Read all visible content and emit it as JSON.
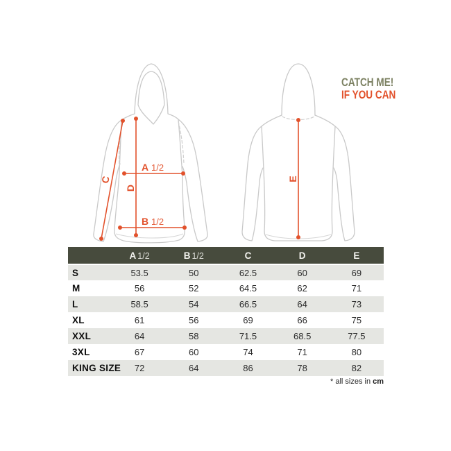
{
  "colors": {
    "accent": "#e2512b",
    "slogan_green": "#7c8162",
    "header_bg": "#474b3d",
    "row_alt": "#e5e6e2",
    "garment_outline": "#c9c9c9"
  },
  "slogan": {
    "line1": "CATCH ME!",
    "line2": "IF YOU CAN"
  },
  "diagram": {
    "front_hoodie": "hoodie front view with measurement lines",
    "back_hoodie": "hoodie back view with measurement line",
    "measurements": {
      "a": "A",
      "b": "B",
      "c": "C",
      "d": "D",
      "e": "E",
      "half": "1/2"
    }
  },
  "table": {
    "columns": [
      {
        "letter": "A",
        "suffix": "1/2"
      },
      {
        "letter": "B",
        "suffix": "1/2"
      },
      {
        "letter": "C",
        "suffix": ""
      },
      {
        "letter": "D",
        "suffix": ""
      },
      {
        "letter": "E",
        "suffix": ""
      }
    ],
    "rows": [
      {
        "size": "S",
        "values": [
          "53.5",
          "50",
          "62.5",
          "60",
          "69"
        ]
      },
      {
        "size": "M",
        "values": [
          "56",
          "52",
          "64.5",
          "62",
          "71"
        ]
      },
      {
        "size": "L",
        "values": [
          "58.5",
          "54",
          "66.5",
          "64",
          "73"
        ]
      },
      {
        "size": "XL",
        "values": [
          "61",
          "56",
          "69",
          "66",
          "75"
        ]
      },
      {
        "size": "XXL",
        "values": [
          "64",
          "58",
          "71.5",
          "68.5",
          "77.5"
        ]
      },
      {
        "size": "3XL",
        "values": [
          "67",
          "60",
          "74",
          "71",
          "80"
        ]
      },
      {
        "size": "KING SIZE",
        "values": [
          "72",
          "64",
          "86",
          "78",
          "82"
        ]
      }
    ]
  },
  "footer": {
    "note_prefix": "* all sizes in",
    "unit": "cm"
  }
}
